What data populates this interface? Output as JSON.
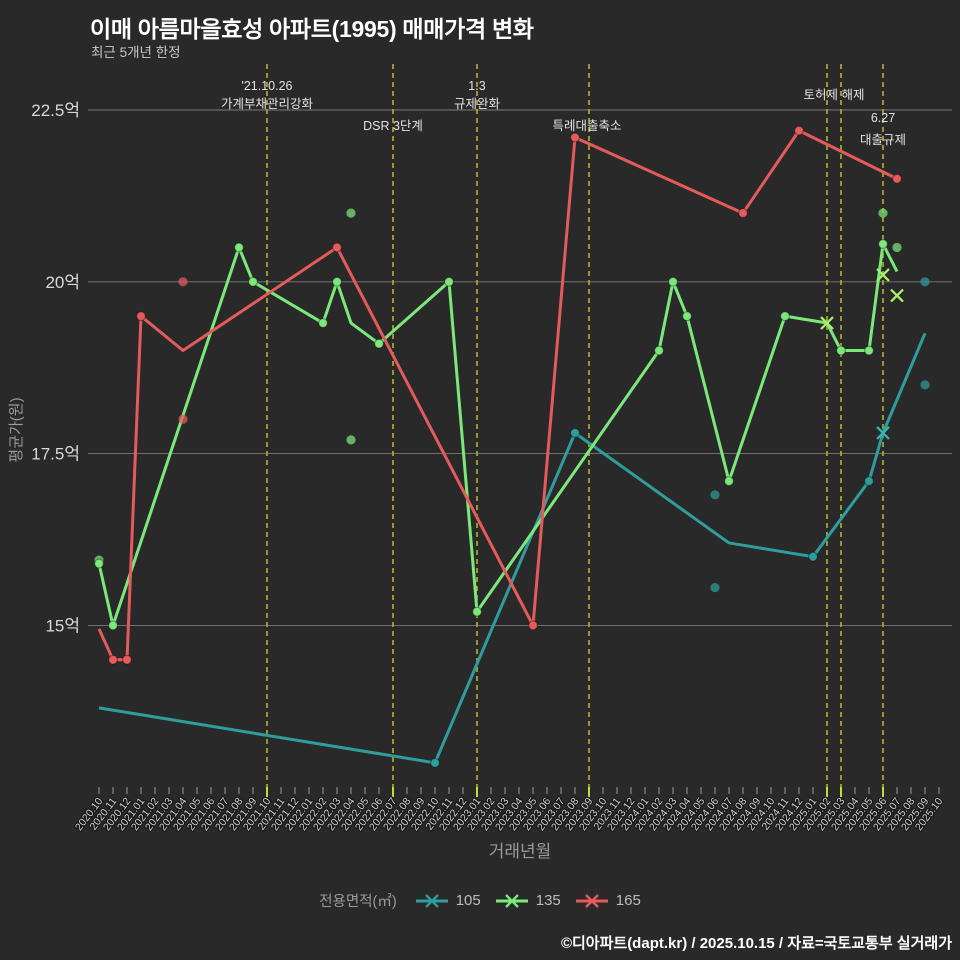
{
  "header": {
    "title": "이매 아름마을효성 아파트(1995) 매매가격 변화",
    "subtitle": "최근 5개년 한정"
  },
  "footer": {
    "credit": "©디아파트(dapt.kr) / 2025.10.15 / 자료=국토교통부 실거래가"
  },
  "legend": {
    "title": "전용면적(㎡)",
    "items": [
      {
        "label": "105",
        "color": "#2f9d9d"
      },
      {
        "label": "135",
        "color": "#7ce87c"
      },
      {
        "label": "165",
        "color": "#e45b5c"
      }
    ]
  },
  "colors": {
    "background": "#292929",
    "grid": "rgba(255,255,255,0.38)",
    "tick": "#9a9a9a",
    "tick_highlight": "#c9d834",
    "axis_label": "#d2d2d2",
    "axis_title": "#9a9a9a",
    "annotation_line": "#b3b331",
    "annotation_text": "#e3e3e3",
    "y_tick_text": "#d9d9d9"
  },
  "chart_data": {
    "type": "line",
    "title": "이매 아름마을효성 아파트(1995) 매매가격 변화",
    "subtitle": "최근 5개년 한정",
    "xlabel": "거래년월",
    "ylabel": "평균가(원)",
    "grid": true,
    "legend_position": "bottom",
    "ylim": [
      12.6,
      23.2
    ],
    "y_ticks": [
      {
        "label": "22.5억",
        "value": 22.5
      },
      {
        "label": "20억",
        "value": 20
      },
      {
        "label": "17.5억",
        "value": 17.5
      },
      {
        "label": "15억",
        "value": 15
      }
    ],
    "x_categories": [
      "2020.10",
      "2020.11",
      "2020.12",
      "2021.01",
      "2021.02",
      "2021.03",
      "2021.04",
      "2021.05",
      "2021.06",
      "2021.07",
      "2021.08",
      "2021.09",
      "2021.10",
      "2021.11",
      "2021.12",
      "2022.01",
      "2022.02",
      "2022.03",
      "2022.04",
      "2022.05",
      "2022.06",
      "2022.07",
      "2022.08",
      "2022.09",
      "2022.10",
      "2022.11",
      "2022.12",
      "2023.01",
      "2023.02",
      "2023.03",
      "2023.04",
      "2023.05",
      "2023.06",
      "2023.07",
      "2023.08",
      "2023.09",
      "2023.10",
      "2023.11",
      "2023.12",
      "2024.01",
      "2024.02",
      "2024.03",
      "2024.04",
      "2024.05",
      "2024.06",
      "2024.07",
      "2024.08",
      "2024.09",
      "2024.10",
      "2024.11",
      "2024.12",
      "2025.01",
      "2025.02",
      "2025.03",
      "2025.04",
      "2025.05",
      "2025.06",
      "2025.07",
      "2025.08",
      "2025.09",
      "2025.10"
    ],
    "series": [
      {
        "name": "105",
        "color": "#2f9d9d",
        "x_marker_color": "#35b5ae",
        "line": [
          [
            "2020.10",
            13.8
          ],
          [
            "2022.10",
            13.0
          ],
          [
            "2023.08",
            17.8
          ],
          [
            "2024.07",
            16.2
          ],
          [
            "2025.01",
            16.0
          ],
          [
            "2025.05",
            17.1
          ],
          [
            "2025.06",
            17.8
          ],
          [
            "2025.09",
            19.25
          ]
        ],
        "dots": [
          [
            "2022.10",
            13.0
          ],
          [
            "2023.08",
            17.8
          ],
          [
            "2025.01",
            16.0
          ],
          [
            "2025.05",
            17.1
          ]
        ],
        "x_markers": [
          [
            "2025.06",
            17.8
          ]
        ],
        "scatter": [
          [
            "2024.06",
            16.9
          ],
          [
            "2024.06",
            15.55
          ],
          [
            "2025.09",
            20.0
          ],
          [
            "2025.09",
            18.5
          ]
        ]
      },
      {
        "name": "135",
        "color": "#7ce87c",
        "x_marker_color": "#a9ef6e",
        "line": [
          [
            "2020.10",
            15.9
          ],
          [
            "2020.11",
            15.0
          ],
          [
            "2021.08",
            20.5
          ],
          [
            "2021.09",
            20.0
          ],
          [
            "2022.02",
            19.4
          ],
          [
            "2022.03",
            20.0
          ],
          [
            "2022.04",
            19.4
          ],
          [
            "2022.06",
            19.1
          ],
          [
            "2022.11",
            20.0
          ],
          [
            "2023.01",
            15.2
          ],
          [
            "2024.02",
            19.0
          ],
          [
            "2024.03",
            20.0
          ],
          [
            "2024.04",
            19.5
          ],
          [
            "2024.07",
            17.1
          ],
          [
            "2024.11",
            19.5
          ],
          [
            "2025.02",
            19.4
          ],
          [
            "2025.03",
            19.0
          ],
          [
            "2025.05",
            19.0
          ],
          [
            "2025.06",
            20.55
          ],
          [
            "2025.07",
            20.15
          ]
        ],
        "dots": [
          [
            "2020.10",
            15.9
          ],
          [
            "2020.11",
            15.0
          ],
          [
            "2021.08",
            20.5
          ],
          [
            "2021.09",
            20.0
          ],
          [
            "2022.02",
            19.4
          ],
          [
            "2022.03",
            20.0
          ],
          [
            "2022.06",
            19.1
          ],
          [
            "2022.11",
            20.0
          ],
          [
            "2023.01",
            15.2
          ],
          [
            "2024.02",
            19.0
          ],
          [
            "2024.03",
            20.0
          ],
          [
            "2024.04",
            19.5
          ],
          [
            "2024.07",
            17.1
          ],
          [
            "2024.11",
            19.5
          ],
          [
            "2025.03",
            19.0
          ],
          [
            "2025.05",
            19.0
          ],
          [
            "2025.06",
            20.55
          ]
        ],
        "x_markers": [
          [
            "2025.02",
            19.4
          ],
          [
            "2025.06",
            20.1
          ],
          [
            "2025.07",
            19.8
          ]
        ],
        "scatter": [
          [
            "2020.10",
            15.95
          ],
          [
            "2022.04",
            21.0
          ],
          [
            "2022.04",
            17.7
          ],
          [
            "2025.06",
            21.0
          ],
          [
            "2025.07",
            20.5
          ]
        ]
      },
      {
        "name": "165",
        "color": "#e45b5c",
        "x_marker_color": "#e45b5c",
        "line": [
          [
            "2020.10",
            14.95
          ],
          [
            "2020.11",
            14.5
          ],
          [
            "2020.12",
            14.5
          ],
          [
            "2021.01",
            19.5
          ],
          [
            "2021.04",
            19.0
          ],
          [
            "2022.03",
            20.5
          ],
          [
            "2023.05",
            15.0
          ],
          [
            "2023.08",
            22.1
          ],
          [
            "2024.08",
            21.0
          ],
          [
            "2024.12",
            22.2
          ],
          [
            "2025.07",
            21.5
          ]
        ],
        "dots": [
          [
            "2020.11",
            14.5
          ],
          [
            "2020.12",
            14.5
          ],
          [
            "2021.01",
            19.5
          ],
          [
            "2022.03",
            20.5
          ],
          [
            "2023.05",
            15.0
          ],
          [
            "2023.08",
            22.1
          ],
          [
            "2024.08",
            21.0
          ],
          [
            "2024.12",
            22.2
          ],
          [
            "2025.07",
            21.5
          ]
        ],
        "x_markers": [],
        "scatter": [
          [
            "2021.04",
            20.0
          ],
          [
            "2021.04",
            18.0
          ]
        ]
      }
    ],
    "annotations": [
      {
        "month": "2021.10",
        "label_lines": [
          "'21.10.26",
          "가계부채관리강화"
        ],
        "label_ys": [
          90,
          108
        ]
      },
      {
        "month": "2022.07",
        "label_lines": [
          "DSR 3단계"
        ],
        "label_ys": [
          130
        ]
      },
      {
        "month": "2023.01",
        "label_lines": [
          "1.3",
          "규제완화"
        ],
        "label_ys": [
          90,
          108
        ]
      },
      {
        "month": "2023.09",
        "label_lines": [
          "특례대출축소"
        ],
        "label_ys": [
          130
        ],
        "label_dx": -2
      },
      {
        "month": "2025.02",
        "label_lines": [],
        "label_ys": []
      },
      {
        "month": "2025.03",
        "label_lines": [
          "토허제 해제"
        ],
        "label_ys": [
          99
        ],
        "label_dx": -7
      },
      {
        "month": "2025.06",
        "label_lines": [
          "6.27",
          "대출규제"
        ],
        "label_ys": [
          122,
          144
        ]
      }
    ]
  }
}
